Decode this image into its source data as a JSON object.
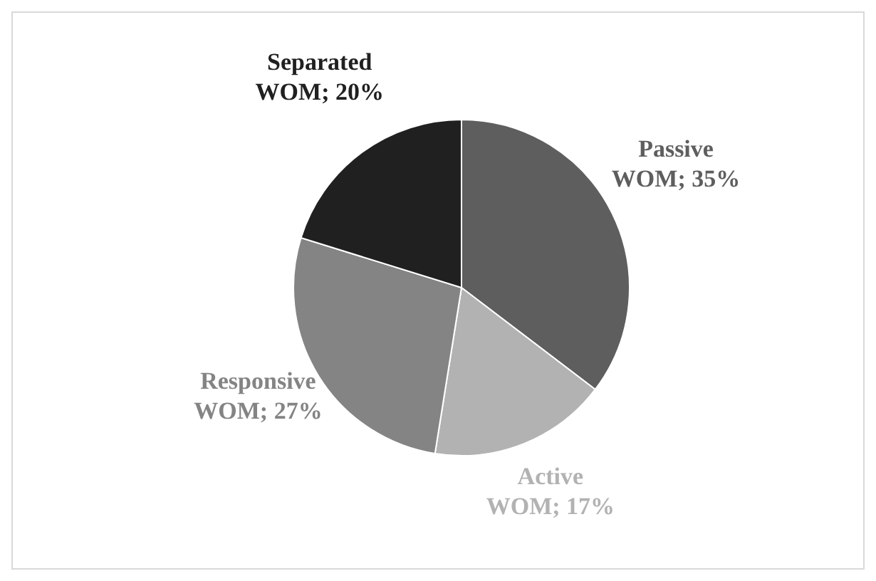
{
  "chart_data": {
    "type": "pie",
    "categories": [
      "Passive WOM",
      "Active WOM",
      "Responsive WOM",
      "Separated WOM"
    ],
    "values": [
      35,
      17,
      27,
      20
    ],
    "value_labels": [
      "35%",
      "17%",
      "27%",
      "20%"
    ],
    "colors": [
      "#5e5e5e",
      "#b2b2b2",
      "#848484",
      "#202020"
    ],
    "legend": false
  }
}
